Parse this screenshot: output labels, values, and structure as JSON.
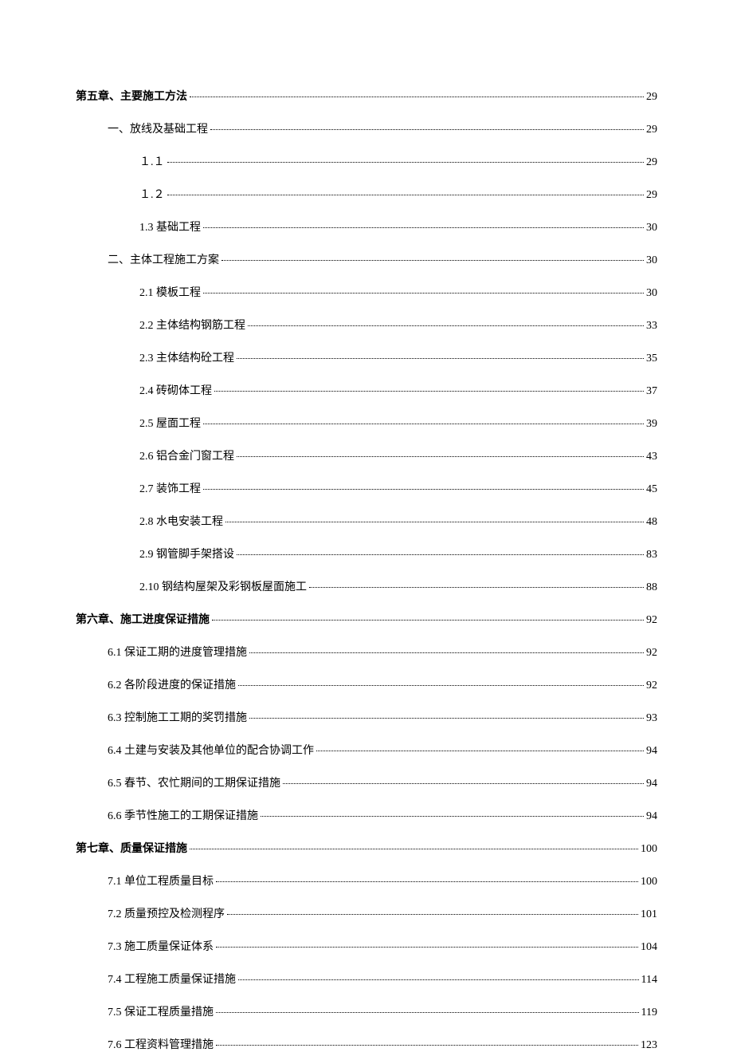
{
  "entries": [
    {
      "title": "第五章、主要施工方法",
      "page": "29",
      "indent": 0,
      "bold": true
    },
    {
      "title": "一、放线及基础工程",
      "page": "29",
      "indent": 1,
      "bold": false
    },
    {
      "title": "１.１",
      "page": "29",
      "indent": 2,
      "bold": false
    },
    {
      "title": "１.２",
      "page": "29",
      "indent": 2,
      "bold": false
    },
    {
      "title": "1.3 基础工程",
      "page": "30",
      "indent": 2,
      "bold": false
    },
    {
      "title": "二、主体工程施工方案",
      "page": "30",
      "indent": 1,
      "bold": false
    },
    {
      "title": "2.1 模板工程",
      "page": "30",
      "indent": 2,
      "bold": false
    },
    {
      "title": "2.2 主体结构钢筋工程",
      "page": "33",
      "indent": 2,
      "bold": false
    },
    {
      "title": "2.3 主体结构砼工程",
      "page": "35",
      "indent": 2,
      "bold": false
    },
    {
      "title": "2.4  砖砌体工程",
      "page": "37",
      "indent": 2,
      "bold": false
    },
    {
      "title": "2.5 屋面工程",
      "page": "39",
      "indent": 2,
      "bold": false
    },
    {
      "title": "2.6 铝合金门窗工程",
      "page": "43",
      "indent": 2,
      "bold": false
    },
    {
      "title": "2.7 装饰工程",
      "page": "45",
      "indent": 2,
      "bold": false
    },
    {
      "title": "2.8 水电安装工程",
      "page": "48",
      "indent": 2,
      "bold": false
    },
    {
      "title": "2.9 钢管脚手架搭设",
      "page": "83",
      "indent": 2,
      "bold": false
    },
    {
      "title": "2.10 钢结构屋架及彩钢板屋面施工",
      "page": "88",
      "indent": 2,
      "bold": false
    },
    {
      "title": "第六章、施工进度保证措施",
      "page": "92",
      "indent": 0,
      "bold": true
    },
    {
      "title": "6.1 保证工期的进度管理措施",
      "page": "92",
      "indent": 1,
      "bold": false
    },
    {
      "title": "6.2 各阶段进度的保证措施",
      "page": "92",
      "indent": 1,
      "bold": false
    },
    {
      "title": "6.3  控制施工工期的奖罚措施",
      "page": "93",
      "indent": 1,
      "bold": false
    },
    {
      "title": "6.4  土建与安装及其他单位的配合协调工作",
      "page": "94",
      "indent": 1,
      "bold": false
    },
    {
      "title": "6.5  春节、农忙期间的工期保证措施",
      "page": "94",
      "indent": 1,
      "bold": false
    },
    {
      "title": "6.6  季节性施工的工期保证措施",
      "page": "94",
      "indent": 1,
      "bold": false
    },
    {
      "title": "第七章、质量保证措施",
      "page": "100",
      "indent": 0,
      "bold": true
    },
    {
      "title": "7.1 单位工程质量目标",
      "page": "100",
      "indent": 1,
      "bold": false
    },
    {
      "title": "7.2 质量预控及检测程序",
      "page": "101",
      "indent": 1,
      "bold": false
    },
    {
      "title": "7.3 施工质量保证体系",
      "page": "104",
      "indent": 1,
      "bold": false
    },
    {
      "title": "7.4 工程施工质量保证措施",
      "page": "114",
      "indent": 1,
      "bold": false
    },
    {
      "title": "7.5 保证工程质量措施",
      "page": "119",
      "indent": 1,
      "bold": false
    },
    {
      "title": "7.6 工程资料管理措施",
      "page": "123",
      "indent": 1,
      "bold": false
    }
  ]
}
